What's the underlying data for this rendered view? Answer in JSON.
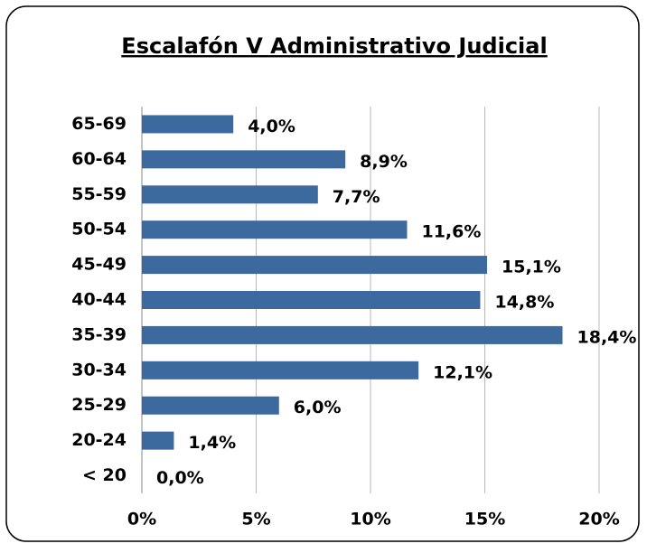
{
  "chart_data": {
    "type": "bar",
    "orientation": "horizontal",
    "title": "Escalafón V  Administrativo Judicial",
    "categories": [
      "65-69",
      "60-64",
      "55-59",
      "50-54",
      "45-49",
      "40-44",
      "35-39",
      "30-34",
      "25-29",
      "20-24",
      "< 20"
    ],
    "values": [
      4.0,
      8.9,
      7.7,
      11.6,
      15.1,
      14.8,
      18.4,
      12.1,
      6.0,
      1.4,
      0.0
    ],
    "value_labels": [
      "4,0%",
      "8,9%",
      "7,7%",
      "11,6%",
      "15,1%",
      "14,8%",
      "18,4%",
      "12,1%",
      "6,0%",
      "1,4%",
      "0,0%"
    ],
    "color": "#3d6a9e",
    "xlim": [
      0,
      20
    ],
    "xticks": [
      {
        "value": 0,
        "label": "0%"
      },
      {
        "value": 5,
        "label": "5%"
      },
      {
        "value": 10,
        "label": "10%"
      },
      {
        "value": 15,
        "label": "15%"
      },
      {
        "value": 20,
        "label": "20%"
      }
    ],
    "grid": true
  }
}
